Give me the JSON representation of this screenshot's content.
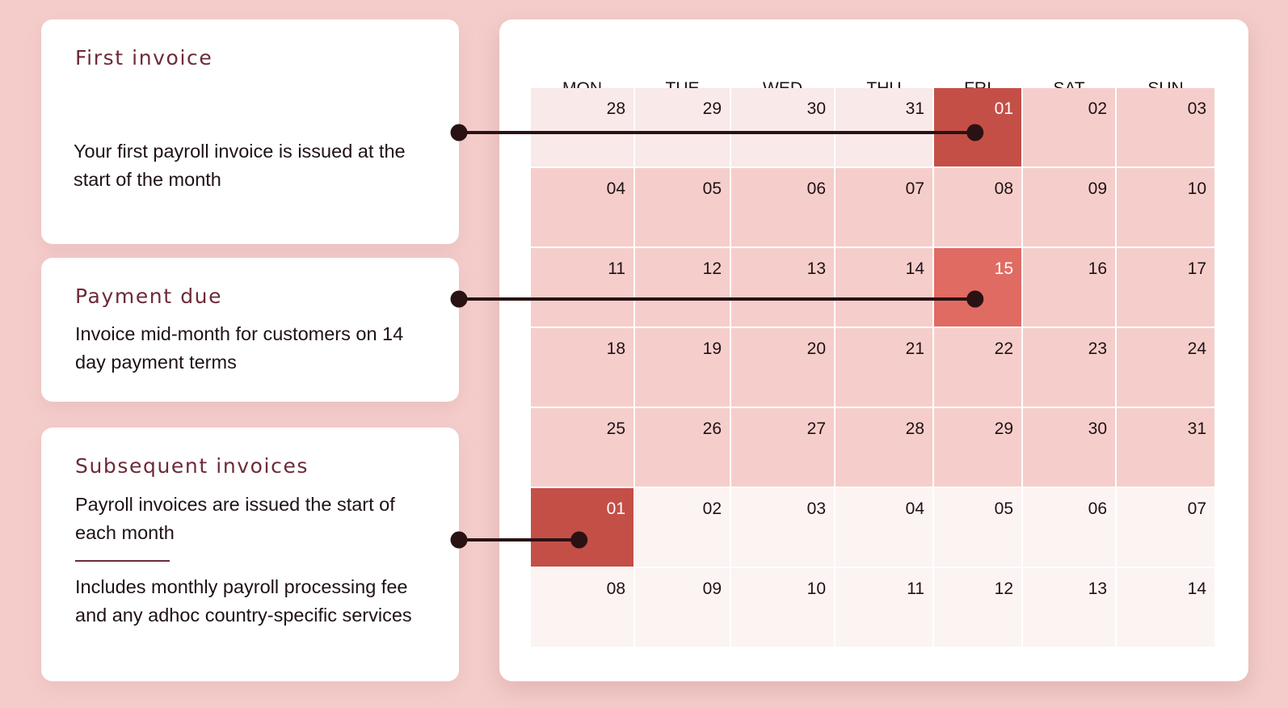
{
  "cards": {
    "first_invoice": {
      "title": "First invoice",
      "text": "Your first payroll invoice is issued at the start of the month"
    },
    "payment_due": {
      "title": "Payment due",
      "text": "Invoice mid-month for customers on 14 day payment terms"
    },
    "subsequent_invoices": {
      "title": "Subsequent invoices",
      "text": "Payroll invoices are issued the start of each month",
      "extra_text": "Includes monthly payroll processing fee and any adhoc country-specific services"
    }
  },
  "calendar": {
    "weekdays": [
      "MON",
      "TUE",
      "WED",
      "THU",
      "FRI",
      "SAT",
      "SUN"
    ],
    "weeks": [
      [
        {
          "day": "28",
          "state": "prev"
        },
        {
          "day": "29",
          "state": "prev"
        },
        {
          "day": "30",
          "state": "prev"
        },
        {
          "day": "31",
          "state": "prev"
        },
        {
          "day": "01",
          "state": "invoice"
        },
        {
          "day": "02",
          "state": "current"
        },
        {
          "day": "03",
          "state": "current"
        }
      ],
      [
        {
          "day": "04",
          "state": "current"
        },
        {
          "day": "05",
          "state": "current"
        },
        {
          "day": "06",
          "state": "current"
        },
        {
          "day": "07",
          "state": "current"
        },
        {
          "day": "08",
          "state": "current"
        },
        {
          "day": "09",
          "state": "current"
        },
        {
          "day": "10",
          "state": "current"
        }
      ],
      [
        {
          "day": "11",
          "state": "current"
        },
        {
          "day": "12",
          "state": "current"
        },
        {
          "day": "13",
          "state": "current"
        },
        {
          "day": "14",
          "state": "current"
        },
        {
          "day": "15",
          "state": "due"
        },
        {
          "day": "16",
          "state": "current"
        },
        {
          "day": "17",
          "state": "current"
        }
      ],
      [
        {
          "day": "18",
          "state": "current"
        },
        {
          "day": "19",
          "state": "current"
        },
        {
          "day": "20",
          "state": "current"
        },
        {
          "day": "21",
          "state": "current"
        },
        {
          "day": "22",
          "state": "current"
        },
        {
          "day": "23",
          "state": "current"
        },
        {
          "day": "24",
          "state": "current"
        }
      ],
      [
        {
          "day": "25",
          "state": "current"
        },
        {
          "day": "26",
          "state": "current"
        },
        {
          "day": "27",
          "state": "current"
        },
        {
          "day": "28",
          "state": "current"
        },
        {
          "day": "29",
          "state": "current"
        },
        {
          "day": "30",
          "state": "current"
        },
        {
          "day": "31",
          "state": "current"
        }
      ],
      [
        {
          "day": "01",
          "state": "invoice"
        },
        {
          "day": "02",
          "state": "next"
        },
        {
          "day": "03",
          "state": "next"
        },
        {
          "day": "04",
          "state": "next"
        },
        {
          "day": "05",
          "state": "next"
        },
        {
          "day": "06",
          "state": "next"
        },
        {
          "day": "07",
          "state": "next"
        }
      ],
      [
        {
          "day": "08",
          "state": "next"
        },
        {
          "day": "09",
          "state": "next"
        },
        {
          "day": "10",
          "state": "next"
        },
        {
          "day": "11",
          "state": "next"
        },
        {
          "day": "12",
          "state": "next"
        },
        {
          "day": "13",
          "state": "next"
        },
        {
          "day": "14",
          "state": "next"
        }
      ]
    ]
  },
  "colors": {
    "background": "#f4cdcb",
    "prev_month_cell": "#f9e9e9",
    "current_month_cell": "#f5cecb",
    "next_month_cell": "#fcf3f3",
    "invoice_highlight": "#c44f47",
    "due_highlight": "#e06b63",
    "title_text": "#6d2a38",
    "connector": "#2a1214"
  },
  "connectors": [
    {
      "from": "first_invoice",
      "to_week": 0,
      "to_weekday": 4
    },
    {
      "from": "payment_due",
      "to_week": 2,
      "to_weekday": 4
    },
    {
      "from": "subsequent_invoices",
      "to_week": 5,
      "to_weekday": 0
    }
  ]
}
